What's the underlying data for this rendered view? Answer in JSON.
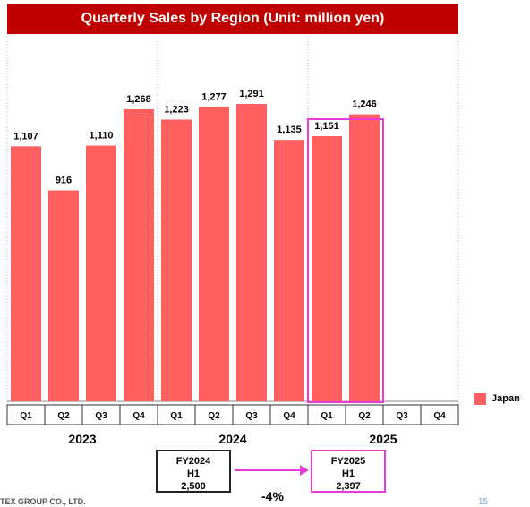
{
  "title": "Quarterly Sales by Region (Unit: million yen)",
  "chart_data": {
    "type": "bar",
    "title": "Quarterly Sales by Region (Unit: million yen)",
    "categories": [
      "Q1",
      "Q2",
      "Q3",
      "Q4",
      "Q1",
      "Q2",
      "Q3",
      "Q4",
      "Q1",
      "Q2",
      "Q3",
      "Q4"
    ],
    "years": [
      "2023",
      "2024",
      "2025"
    ],
    "series": [
      {
        "name": "Japan",
        "color": "#ff5f5f",
        "values": [
          1107,
          916,
          1110,
          1268,
          1223,
          1277,
          1291,
          1135,
          1151,
          1246,
          null,
          null
        ],
        "labels": [
          "1,107",
          "916",
          "1,110",
          "1,268",
          "1,223",
          "1,277",
          "1,291",
          "1,135",
          "1,151",
          "1,246",
          "",
          ""
        ]
      }
    ],
    "ylim": [
      0,
      1400
    ],
    "grid": false,
    "legend_position": "right",
    "highlight_color": "#e83ad6"
  },
  "legend": {
    "japan": "Japan"
  },
  "comparison": {
    "fy2024": {
      "line1": "FY2024",
      "line2": "H1",
      "value": "2,500"
    },
    "fy2025": {
      "line1": "FY2025",
      "line2": "H1",
      "value": "2,397"
    },
    "change": "-4%"
  },
  "footer": {
    "company": "TEX GROUP CO., LTD.",
    "page": "15"
  }
}
